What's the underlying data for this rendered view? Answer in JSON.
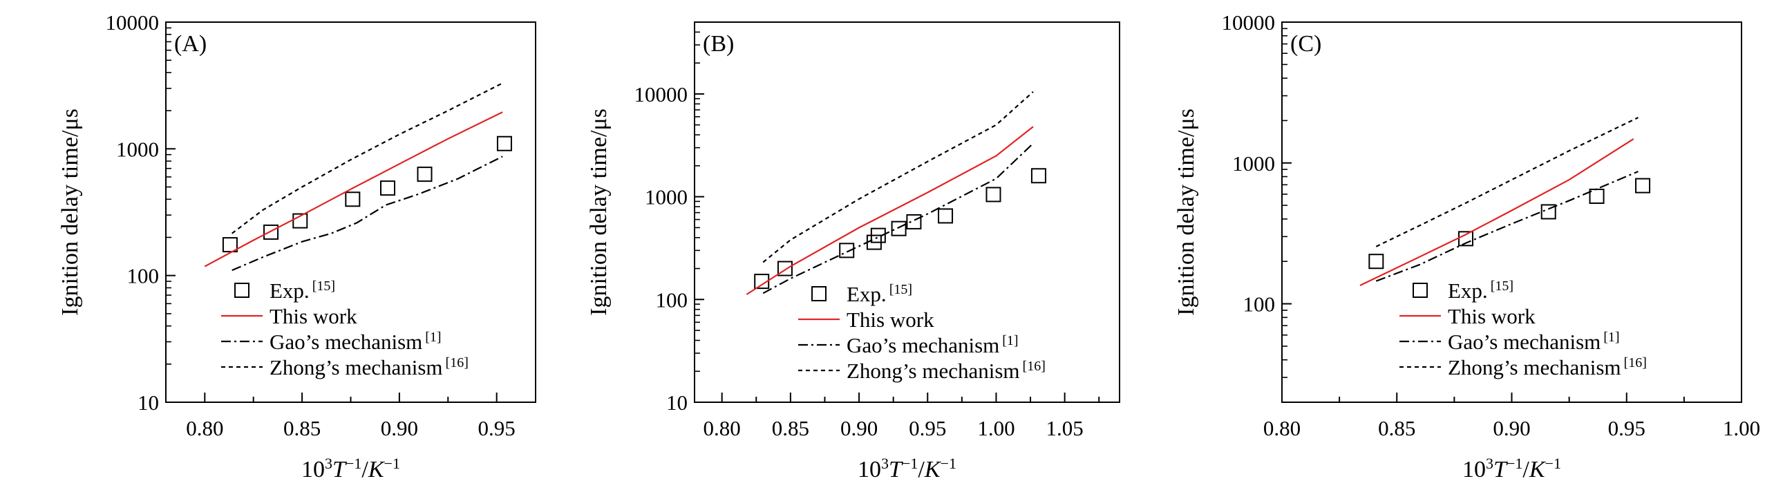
{
  "chart_data": [
    {
      "type": "line",
      "panel_label": "(A)",
      "xlabel": {
        "prefix": "10",
        "sup1": "3",
        "T": "T",
        "sup2": "−1",
        "slash": "/",
        "K": "K",
        "sup3": "−1"
      },
      "ylabel": "Ignition delay time/μs",
      "xlim": [
        0.78,
        0.97
      ],
      "ylim": [
        10,
        10000
      ],
      "yscale": "log",
      "xticks": [
        0.8,
        0.85,
        0.9,
        0.95
      ],
      "xtick_labels": [
        "0.80",
        "0.85",
        "0.90",
        "0.95"
      ],
      "yticks": [
        10,
        100,
        1000,
        10000
      ],
      "ytick_labels": [
        "10",
        "100",
        "1000",
        "10000"
      ],
      "legend": [
        {
          "label": "Exp.",
          "sup": "[15]",
          "style": "square"
        },
        {
          "label": "This work",
          "sup": "",
          "style": "solid"
        },
        {
          "label": "Gao’s mechanism",
          "sup": "[1]",
          "style": "dashdot"
        },
        {
          "label": "Zhong’s mechanism",
          "sup": "[16]",
          "style": "dotted"
        }
      ],
      "series": [
        {
          "name": "Exp. [15]",
          "style": "square",
          "x": [
            0.813,
            0.834,
            0.849,
            0.876,
            0.894,
            0.913,
            0.954
          ],
          "y": [
            175,
            220,
            270,
            400,
            490,
            630,
            1100
          ]
        },
        {
          "name": "This work",
          "style": "solid",
          "x": [
            0.8,
            0.825,
            0.85,
            0.875,
            0.9,
            0.925,
            0.953
          ],
          "y": [
            118,
            190,
            300,
            480,
            760,
            1200,
            1950
          ]
        },
        {
          "name": "Gao’s mechanism [1]",
          "style": "dashdot",
          "x": [
            0.814,
            0.83,
            0.85,
            0.865,
            0.878,
            0.893,
            0.91,
            0.93,
            0.953
          ],
          "y": [
            110,
            140,
            185,
            215,
            260,
            360,
            440,
            580,
            870
          ]
        },
        {
          "name": "Zhong’s mechanism [16]",
          "style": "dotted",
          "x": [
            0.814,
            0.83,
            0.85,
            0.875,
            0.9,
            0.925,
            0.953
          ],
          "y": [
            215,
            330,
            500,
            820,
            1300,
            2000,
            3300
          ]
        }
      ]
    },
    {
      "type": "line",
      "panel_label": "(B)",
      "xlabel": {
        "prefix": "10",
        "sup1": "3",
        "T": "T",
        "sup2": "−1",
        "slash": "/",
        "K": "K",
        "sup3": "−1"
      },
      "ylabel": "Ignition delay time/μs",
      "xlim": [
        0.78,
        1.09
      ],
      "ylim": [
        10,
        50000
      ],
      "yscale": "log",
      "xticks": [
        0.8,
        0.85,
        0.9,
        0.95,
        1.0,
        1.05
      ],
      "xtick_labels": [
        "0.80",
        "0.85",
        "0.90",
        "0.95",
        "1.00",
        "1.05"
      ],
      "yticks": [
        10,
        100,
        1000,
        10000
      ],
      "ytick_labels": [
        "10",
        "100",
        "1000",
        "10000"
      ],
      "legend": [
        {
          "label": "Exp.",
          "sup": "[15]",
          "style": "square"
        },
        {
          "label": "This work",
          "sup": "",
          "style": "solid"
        },
        {
          "label": "Gao’s mechanism",
          "sup": "[1]",
          "style": "dashdot"
        },
        {
          "label": "Zhong’s mechanism",
          "sup": "[16]",
          "style": "dotted"
        }
      ],
      "series": [
        {
          "name": "Exp. [15]",
          "style": "square",
          "x": [
            0.829,
            0.846,
            0.891,
            0.911,
            0.914,
            0.929,
            0.94,
            0.963,
            0.998,
            1.031
          ],
          "y": [
            150,
            200,
            300,
            360,
            420,
            490,
            570,
            650,
            1050,
            1600
          ]
        },
        {
          "name": "This work",
          "style": "solid",
          "x": [
            0.818,
            0.85,
            0.9,
            0.95,
            1.0,
            1.027
          ],
          "y": [
            112,
            210,
            500,
            1100,
            2500,
            4800
          ]
        },
        {
          "name": "Gao’s mechanism [1]",
          "style": "dashdot",
          "x": [
            0.83,
            0.85,
            0.9,
            0.95,
            1.0,
            1.027
          ],
          "y": [
            115,
            160,
            330,
            680,
            1500,
            3300
          ]
        },
        {
          "name": "Zhong’s mechanism [16]",
          "style": "dotted",
          "x": [
            0.83,
            0.85,
            0.9,
            0.95,
            1.0,
            1.027
          ],
          "y": [
            230,
            380,
            950,
            2200,
            5000,
            10500
          ]
        }
      ]
    },
    {
      "type": "line",
      "panel_label": "(C)",
      "xlabel": {
        "prefix": "10",
        "sup1": "3",
        "T": "T",
        "sup2": "−1",
        "slash": "/",
        "K": "K",
        "sup3": "−1"
      },
      "ylabel": "Ignition delay time/μs",
      "xlim": [
        0.8,
        1.0
      ],
      "ylim": [
        20,
        10000
      ],
      "yscale": "log",
      "xticks": [
        0.8,
        0.85,
        0.9,
        0.95,
        1.0
      ],
      "xtick_labels": [
        "0.80",
        "0.85",
        "0.90",
        "0.95",
        "1.00"
      ],
      "yticks": [
        100,
        1000,
        10000
      ],
      "ytick_labels": [
        "100",
        "1000",
        "10000"
      ],
      "legend": [
        {
          "label": "Exp.",
          "sup": "[15]",
          "style": "square"
        },
        {
          "label": "This work",
          "sup": "",
          "style": "solid"
        },
        {
          "label": "Gao’s mechanism",
          "sup": "[1]",
          "style": "dashdot"
        },
        {
          "label": "Zhong’s mechanism",
          "sup": "[16]",
          "style": "dotted"
        }
      ],
      "series": [
        {
          "name": "Exp. [15]",
          "style": "square",
          "x": [
            0.841,
            0.88,
            0.916,
            0.937,
            0.957
          ],
          "y": [
            200,
            290,
            450,
            580,
            690
          ]
        },
        {
          "name": "This work",
          "style": "solid",
          "x": [
            0.834,
            0.85,
            0.88,
            0.9,
            0.925,
            0.953
          ],
          "y": [
            135,
            180,
            310,
            460,
            760,
            1480
          ]
        },
        {
          "name": "Gao’s mechanism [1]",
          "style": "dashdot",
          "x": [
            0.841,
            0.86,
            0.88,
            0.9,
            0.925,
            0.955
          ],
          "y": [
            145,
            190,
            270,
            370,
            540,
            870
          ]
        },
        {
          "name": "Zhong’s mechanism [16]",
          "style": "dotted",
          "x": [
            0.841,
            0.86,
            0.88,
            0.9,
            0.925,
            0.955
          ],
          "y": [
            255,
            360,
            520,
            760,
            1220,
            2100
          ]
        }
      ]
    }
  ]
}
